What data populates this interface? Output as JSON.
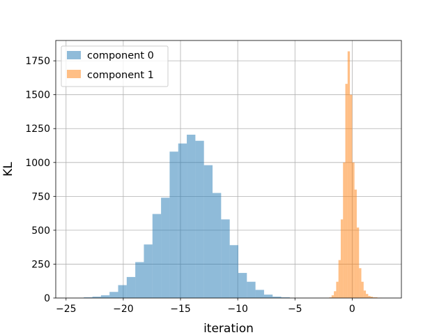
{
  "chart_data": {
    "type": "bar",
    "subtype": "histogram",
    "xlabel": "iteration",
    "ylabel": "KL",
    "xlim": [
      -25.9,
      4.3
    ],
    "ylim": [
      0,
      1900
    ],
    "xticks": [
      -25,
      -20,
      -15,
      -10,
      -5,
      0
    ],
    "yticks": [
      0,
      250,
      500,
      750,
      1000,
      1250,
      1500,
      1750
    ],
    "grid": true,
    "legend_position": "top-left",
    "colors": {
      "component_0": "#1f77b4",
      "component_1": "#ff7f0e"
    },
    "bar_alpha": 0.5,
    "series": [
      {
        "name": "component 0",
        "bin_edges": [
          -23.45,
          -22.7,
          -21.95,
          -21.2,
          -20.45,
          -19.7,
          -18.95,
          -18.2,
          -17.45,
          -16.7,
          -15.95,
          -15.2,
          -14.45,
          -13.7,
          -12.95,
          -12.2,
          -11.45,
          -10.7,
          -9.95,
          -9.2,
          -8.45,
          -7.7,
          -6.95,
          -6.2,
          -5.45
        ],
        "counts": [
          5,
          10,
          20,
          45,
          95,
          155,
          265,
          395,
          620,
          740,
          1080,
          1140,
          1205,
          1160,
          980,
          775,
          580,
          390,
          185,
          120,
          60,
          25,
          10,
          5
        ]
      },
      {
        "name": "component 1",
        "bin_edges": [
          -2.0,
          -1.8,
          -1.6,
          -1.4,
          -1.2,
          -1.0,
          -0.8,
          -0.6,
          -0.4,
          -0.2,
          0.0,
          0.2,
          0.4,
          0.6,
          0.8,
          1.0,
          1.2,
          1.4,
          1.6,
          1.8,
          2.0,
          2.2,
          2.4,
          2.6
        ],
        "counts": [
          5,
          20,
          50,
          120,
          280,
          580,
          1000,
          1580,
          1820,
          1500,
          1000,
          800,
          520,
          220,
          120,
          55,
          30,
          15,
          10,
          5,
          5,
          2,
          2
        ]
      }
    ]
  }
}
